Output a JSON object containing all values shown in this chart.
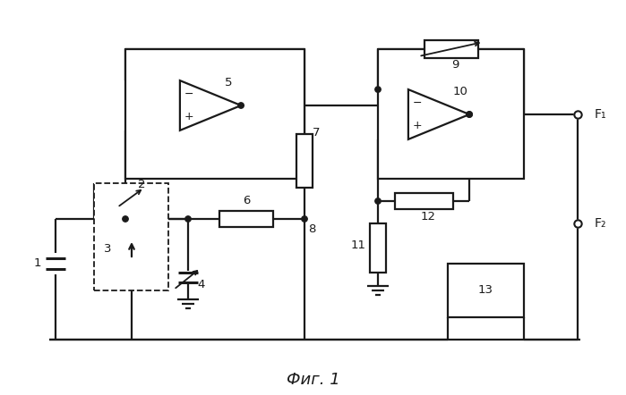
{
  "title": "Фиг. 1",
  "bg_color": "#ffffff",
  "line_color": "#1a1a1a",
  "figsize": [
    6.99,
    4.42
  ],
  "dpi": 100
}
